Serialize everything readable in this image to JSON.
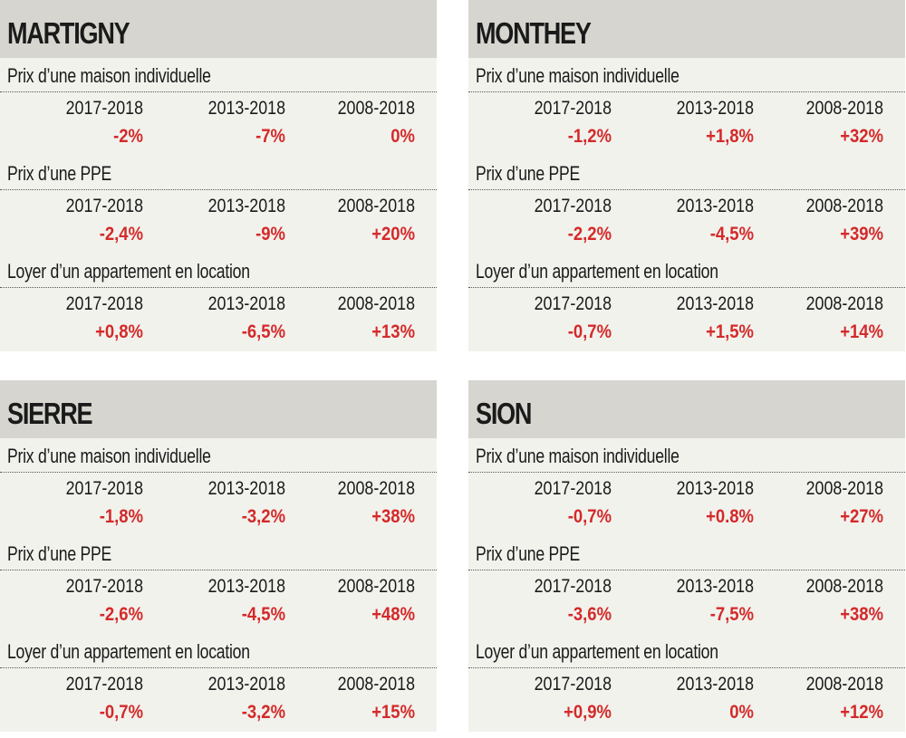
{
  "accent_color": "#d42a2a",
  "panels": [
    {
      "city": "MARTIGNY",
      "sections": [
        {
          "title": "Prix d’une maison individuelle",
          "periods": [
            "2017-2018",
            "2013-2018",
            "2008-2018"
          ],
          "values": [
            "-2%",
            "-7%",
            "0%"
          ]
        },
        {
          "title": "Prix d’une PPE",
          "periods": [
            "2017-2018",
            "2013-2018",
            "2008-2018"
          ],
          "values": [
            "-2,4%",
            "-9%",
            "+20%"
          ]
        },
        {
          "title": "Loyer d’un appartement en location",
          "periods": [
            "2017-2018",
            "2013-2018",
            "2008-2018"
          ],
          "values": [
            "+0,8%",
            "-6,5%",
            "+13%"
          ]
        }
      ]
    },
    {
      "city": "MONTHEY",
      "sections": [
        {
          "title": "Prix d’une maison individuelle",
          "periods": [
            "2017-2018",
            "2013-2018",
            "2008-2018"
          ],
          "values": [
            "-1,2%",
            "+1,8%",
            "+32%"
          ]
        },
        {
          "title": "Prix d’une PPE",
          "periods": [
            "2017-2018",
            "2013-2018",
            "2008-2018"
          ],
          "values": [
            "-2,2%",
            "-4,5%",
            "+39%"
          ]
        },
        {
          "title": "Loyer d’un appartement en location",
          "periods": [
            "2017-2018",
            "2013-2018",
            "2008-2018"
          ],
          "values": [
            "-0,7%",
            "+1,5%",
            "+14%"
          ]
        }
      ]
    },
    {
      "city": "SIERRE",
      "sections": [
        {
          "title": "Prix d’une maison individuelle",
          "periods": [
            "2017-2018",
            "2013-2018",
            "2008-2018"
          ],
          "values": [
            "-1,8%",
            "-3,2%",
            "+38%"
          ]
        },
        {
          "title": "Prix d’une PPE",
          "periods": [
            "2017-2018",
            "2013-2018",
            "2008-2018"
          ],
          "values": [
            "-2,6%",
            "-4,5%",
            "+48%"
          ]
        },
        {
          "title": "Loyer d’un appartement en location",
          "periods": [
            "2017-2018",
            "2013-2018",
            "2008-2018"
          ],
          "values": [
            "-0,7%",
            "-3,2%",
            "+15%"
          ]
        }
      ]
    },
    {
      "city": "SION",
      "sections": [
        {
          "title": "Prix d’une maison individuelle",
          "periods": [
            "2017-2018",
            "2013-2018",
            "2008-2018"
          ],
          "values": [
            "-0,7%",
            "+0.8%",
            "+27%"
          ]
        },
        {
          "title": "Prix d’une PPE",
          "periods": [
            "2017-2018",
            "2013-2018",
            "2008-2018"
          ],
          "values": [
            "-3,6%",
            "-7,5%",
            "+38%"
          ]
        },
        {
          "title": "Loyer d’un appartement en location",
          "periods": [
            "2017-2018",
            "2013-2018",
            "2008-2018"
          ],
          "values": [
            "+0,9%",
            "0%",
            "+12%"
          ]
        }
      ]
    }
  ]
}
